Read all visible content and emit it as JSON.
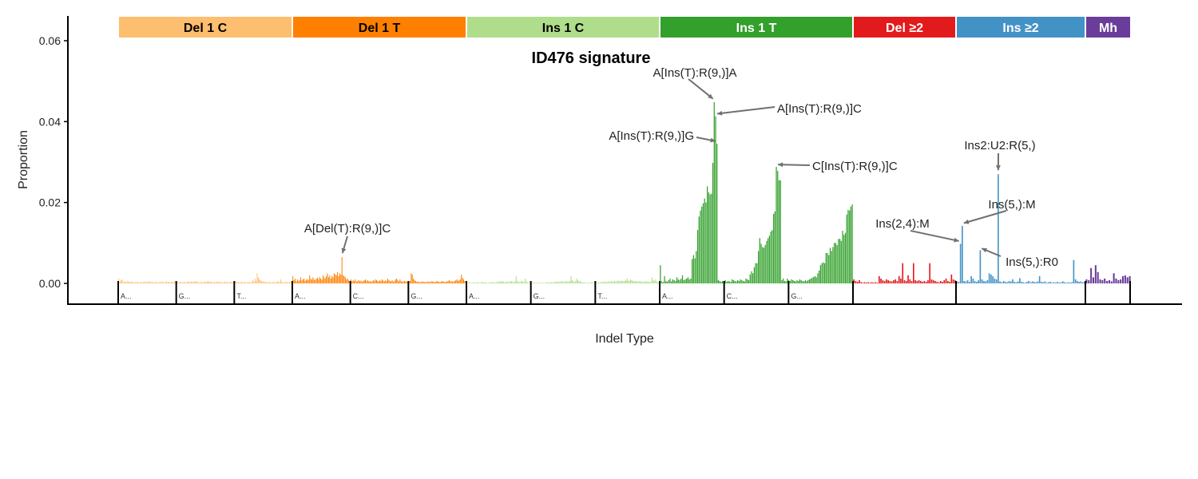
{
  "chart_data": {
    "type": "bar",
    "title": "ID476 signature",
    "xlabel": "Indel Type",
    "ylabel": "Proportion",
    "ylim": [
      0,
      0.065
    ],
    "yticks": [
      "0.00",
      "0.02",
      "0.04",
      "0.06"
    ],
    "ytick_values": [
      0,
      0.02,
      0.04,
      0.06
    ],
    "grid": false,
    "categories": [
      {
        "name": "Del 1 C",
        "color": "#fdbe6f",
        "text_color": "#000000",
        "groups": [
          "A...",
          "G...",
          "T..."
        ],
        "values": [
          0.0012,
          0.0004,
          0.0008,
          0.001,
          0.0003,
          0.0005,
          0.0004,
          0.0003,
          0.0006,
          0.0004,
          0.0003,
          0.0005,
          0.0003,
          0.0004,
          0.0002,
          0.0003,
          0.0004,
          0.0003,
          0.0002,
          0.0003,
          0.0004,
          0.0002,
          0.0003,
          0.0005,
          0.0002,
          0.0004,
          0.0003,
          0.0005,
          0.0004,
          0.0003,
          0.0004,
          0.0003,
          0.0002,
          0.0004,
          0.0003,
          0.0002,
          0.0003,
          0.0004,
          0.0002,
          0.0005,
          0.0003,
          0.0002,
          0.0004,
          0.0005,
          0.0003,
          0.0004,
          0.0002,
          0.0003,
          0.0004,
          0.0003,
          0.0005,
          0.0002,
          0.0004,
          0.0003,
          0.0002,
          0.0003,
          0.0004,
          0.0002,
          0.0003,
          0.0004,
          0.0002,
          0.0003,
          0.0005,
          0.0004,
          0.0003,
          0.0004,
          0.0005,
          0.0003,
          0.0004,
          0.0006,
          0.0003,
          0.0004,
          0.0002,
          0.0003,
          0.0004,
          0.0002,
          0.0003,
          0.0005,
          0.0003,
          0.0004,
          0.0006,
          0.0003,
          0.0005,
          0.0004,
          0.0002,
          0.0003,
          0.0004,
          0.0003,
          0.0004,
          0.0005,
          0.0003,
          0.0004,
          0.0003,
          0.0002,
          0.0003,
          0.0004,
          0.0003,
          0.0004,
          0.0002,
          0.0003,
          0.0004,
          0.0003,
          0.0002,
          0.0003,
          0.0004,
          0.0005,
          0.0003,
          0.0004,
          0.0002,
          0.0003,
          0.0004,
          0.0003,
          0.0002,
          0.0004,
          0.0003,
          0.0002,
          0.0003,
          0.0004,
          0.0002,
          0.0003,
          0.0008,
          0.0004,
          0.0012,
          0.0006,
          0.0025,
          0.0015,
          0.001,
          0.0008,
          0.0006,
          0.0004,
          0.0005,
          0.0003,
          0.0004,
          0.0003,
          0.0002,
          0.0004,
          0.0003,
          0.0002,
          0.0003,
          0.0004,
          0.0002,
          0.0003,
          0.0005,
          0.0004,
          0.0003,
          0.001,
          0.0004,
          0.0003,
          0.0002,
          0.0003,
          0.0004,
          0.0003,
          0.0002,
          0.0003,
          0.0004,
          0.0003
        ]
      },
      {
        "name": "Del 1 T",
        "color": "#ff8001",
        "text_color": "#000000",
        "groups": [
          "A...",
          "C...",
          "G..."
        ],
        "values": [
          0.0018,
          0.0008,
          0.0012,
          0.0005,
          0.001,
          0.0006,
          0.0008,
          0.0015,
          0.0007,
          0.001,
          0.0012,
          0.0006,
          0.0009,
          0.0011,
          0.0008,
          0.002,
          0.0012,
          0.0009,
          0.0015,
          0.001,
          0.0008,
          0.0012,
          0.0014,
          0.001,
          0.0016,
          0.0012,
          0.0009,
          0.002,
          0.0015,
          0.0012,
          0.0018,
          0.0025,
          0.0015,
          0.002,
          0.0012,
          0.0018,
          0.0015,
          0.0025,
          0.0022,
          0.002,
          0.0028,
          0.0018,
          0.0025,
          0.0022,
          0.0065,
          0.002,
          0.0018,
          0.0015,
          0.001,
          0.0012,
          0.0008,
          0.0006,
          0.001,
          0.0005,
          0.0008,
          0.0006,
          0.001,
          0.0004,
          0.0006,
          0.0008,
          0.0005,
          0.0007,
          0.0004,
          0.0006,
          0.0008,
          0.001,
          0.0006,
          0.0008,
          0.0005,
          0.0006,
          0.0004,
          0.0005,
          0.0008,
          0.0006,
          0.001,
          0.0008,
          0.0006,
          0.0005,
          0.0008,
          0.0006,
          0.001,
          0.0007,
          0.0005,
          0.0008,
          0.0006,
          0.0012,
          0.0008,
          0.0006,
          0.0005,
          0.0008,
          0.0004,
          0.0006,
          0.001,
          0.0012,
          0.0008,
          0.0005,
          0.001,
          0.0006,
          0.0004,
          0.0005,
          0.0006,
          0.0004,
          0.0005,
          0.0003,
          0.0004,
          0.0006,
          0.0025,
          0.0022,
          0.0012,
          0.0008,
          0.0006,
          0.0004,
          0.0005,
          0.0003,
          0.0004,
          0.0003,
          0.0005,
          0.0004,
          0.0003,
          0.0004,
          0.0003,
          0.0005,
          0.0004,
          0.0003,
          0.0006,
          0.0004,
          0.0005,
          0.0003,
          0.0004,
          0.0006,
          0.0005,
          0.0004,
          0.0003,
          0.0005,
          0.0006,
          0.0004,
          0.0003,
          0.0005,
          0.0004,
          0.0006,
          0.0008,
          0.0005,
          0.0006,
          0.0004,
          0.0005,
          0.0006,
          0.0008,
          0.001,
          0.0006,
          0.0008,
          0.001,
          0.0022,
          0.0014,
          0.001,
          0.0006,
          0.0004
        ]
      },
      {
        "name": "Ins 1 C",
        "color": "#b0dd8b",
        "text_color": "#000000",
        "groups": [
          "A...",
          "G...",
          "T..."
        ],
        "values": [
          0.0002,
          0.0001,
          0.0003,
          0.0002,
          0.0001,
          0.0002,
          0.0003,
          0.0001,
          0.0002,
          0.0003,
          0.0002,
          0.0001,
          0.0002,
          0.0004,
          0.0003,
          0.0002,
          0.0003,
          0.0002,
          0.0001,
          0.0002,
          0.0003,
          0.0002,
          0.0004,
          0.0002,
          0.0003,
          0.0002,
          0.0004,
          0.0003,
          0.0005,
          0.0004,
          0.0006,
          0.0004,
          0.0005,
          0.0003,
          0.0004,
          0.0005,
          0.0003,
          0.0004,
          0.0005,
          0.0006,
          0.0004,
          0.0003,
          0.0005,
          0.0018,
          0.0006,
          0.0004,
          0.0003,
          0.0005,
          0.0006,
          0.0004,
          0.0003,
          0.0012,
          0.0005,
          0.0003,
          0.0002,
          0.0003,
          0.0002,
          0.0001,
          0.0002,
          0.0002,
          0.0001,
          0.0002,
          0.0001,
          0.0002,
          0.0001,
          0.0002,
          0.0001,
          0.0002,
          0.0001,
          0.0002,
          0.0003,
          0.0002,
          0.0003,
          0.0002,
          0.0003,
          0.0002,
          0.0004,
          0.0003,
          0.0004,
          0.0005,
          0.0004,
          0.0003,
          0.0005,
          0.0006,
          0.0004,
          0.0003,
          0.0006,
          0.0005,
          0.0004,
          0.0005,
          0.0006,
          0.0018,
          0.0008,
          0.0005,
          0.0004,
          0.0006,
          0.0012,
          0.0008,
          0.0005,
          0.0006,
          0.0003,
          0.0002,
          0.0003,
          0.0002,
          0.0001,
          0.0002,
          0.0002,
          0.0001,
          0.0002,
          0.0003,
          0.0002,
          0.0001,
          0.0002,
          0.0003,
          0.0002,
          0.0003,
          0.0002,
          0.0003,
          0.0004,
          0.0003,
          0.0005,
          0.0004,
          0.0003,
          0.0004,
          0.0005,
          0.0003,
          0.0006,
          0.0004,
          0.0005,
          0.0006,
          0.0004,
          0.0005,
          0.0008,
          0.0005,
          0.0006,
          0.0007,
          0.0005,
          0.0006,
          0.0006,
          0.0008,
          0.0012,
          0.0007,
          0.0006,
          0.001,
          0.0008,
          0.0006,
          0.0005,
          0.0006,
          0.0005,
          0.0004,
          0.0005,
          0.0006,
          0.0004,
          0.0005,
          0.0003,
          0.0004,
          0.0006,
          0.0004,
          0.0005,
          0.0004,
          0.0003,
          0.0005,
          0.0015,
          0.0008,
          0.0006,
          0.001,
          0.0004,
          0.0003,
          0.0002
        ]
      },
      {
        "name": "Ins 1 T",
        "color": "#33a02c",
        "text_color": "#ffffff",
        "groups": [
          "A...",
          "C...",
          "G..."
        ],
        "values": [
          0.0045,
          0.0005,
          0.0003,
          0.0018,
          0.0006,
          0.0004,
          0.0008,
          0.0012,
          0.0005,
          0.001,
          0.0008,
          0.0006,
          0.0015,
          0.001,
          0.0008,
          0.0012,
          0.002,
          0.0008,
          0.001,
          0.0012,
          0.0015,
          0.001,
          0.0012,
          0.006,
          0.007,
          0.0062,
          0.008,
          0.0132,
          0.0165,
          0.018,
          0.019,
          0.0198,
          0.021,
          0.02,
          0.024,
          0.0225,
          0.022,
          0.0222,
          0.0298,
          0.0448,
          0.0413,
          0.0345,
          0.0008,
          0.0006,
          0.0004,
          0.0006,
          0.0005,
          0.0008,
          0.0004,
          0.0006,
          0.0005,
          0.0004,
          0.001,
          0.0008,
          0.0006,
          0.0005,
          0.0008,
          0.0006,
          0.001,
          0.0008,
          0.0006,
          0.0005,
          0.0012,
          0.001,
          0.0008,
          0.0022,
          0.003,
          0.0025,
          0.004,
          0.005,
          0.005,
          0.008,
          0.0112,
          0.0098,
          0.009,
          0.0088,
          0.0095,
          0.0105,
          0.0112,
          0.0118,
          0.0128,
          0.0132,
          0.0172,
          0.0178,
          0.0288,
          0.0278,
          0.0255,
          0.0255,
          0.0008,
          0.0012,
          0.0006,
          0.0005,
          0.0012,
          0.0008,
          0.0006,
          0.001,
          0.0008,
          0.0006,
          0.0005,
          0.0008,
          0.0006,
          0.001,
          0.0008,
          0.0006,
          0.0005,
          0.0008,
          0.0006,
          0.0008,
          0.001,
          0.0012,
          0.0014,
          0.0016,
          0.0018,
          0.0015,
          0.0025,
          0.0032,
          0.0045,
          0.005,
          0.0052,
          0.005,
          0.0075,
          0.0075,
          0.007,
          0.0088,
          0.008,
          0.009,
          0.01,
          0.01,
          0.0095,
          0.011,
          0.011,
          0.0105,
          0.013,
          0.012,
          0.0125,
          0.017,
          0.0182,
          0.018,
          0.019,
          0.0195
        ]
      },
      {
        "name": "Del ≥2",
        "color": "#e31a1c",
        "text_color": "#ffffff",
        "groups": [],
        "values": [
          0.001,
          0.0006,
          0.0004,
          0.0008,
          0.0003,
          0.0002,
          0.0003,
          0.0002,
          0.0003,
          0.0002,
          0.0003,
          0.0002,
          0.0003,
          0.0002,
          0.0018,
          0.0012,
          0.0008,
          0.0006,
          0.001,
          0.0008,
          0.0006,
          0.0005,
          0.0008,
          0.001,
          0.0006,
          0.0018,
          0.0012,
          0.005,
          0.0008,
          0.0006,
          0.002,
          0.001,
          0.0006,
          0.005,
          0.0008,
          0.0006,
          0.0008,
          0.0006,
          0.0004,
          0.0006,
          0.0004,
          0.0008,
          0.005,
          0.001,
          0.0008,
          0.0006,
          0.0004,
          0.0003,
          0.0006,
          0.0004,
          0.0008,
          0.0012,
          0.0006,
          0.0004,
          0.0022,
          0.001,
          0.0008
        ]
      },
      {
        "name": "Ins ≥2",
        "color": "#4392c6",
        "text_color": "#ffffff",
        "groups": [],
        "values": [
          0.0005,
          0.0004,
          0.0098,
          0.0142,
          0.0006,
          0.0005,
          0.0008,
          0.0004,
          0.0018,
          0.0012,
          0.0006,
          0.0004,
          0.0008,
          0.0082,
          0.001,
          0.0006,
          0.0005,
          0.0008,
          0.0025,
          0.0022,
          0.0018,
          0.0012,
          0.001,
          0.027,
          0.0005,
          0.0003,
          0.0006,
          0.0004,
          0.0003,
          0.0006,
          0.0005,
          0.001,
          0.0004,
          0.0003,
          0.0005,
          0.0013,
          0.0004,
          0.0003,
          0.0002,
          0.0004,
          0.0006,
          0.0003,
          0.0005,
          0.0004,
          0.0003,
          0.0005,
          0.0018,
          0.0004,
          0.0003,
          0.0005,
          0.0002,
          0.0003,
          0.0004,
          0.0002,
          0.0003,
          0.0002,
          0.0004,
          0.0002,
          0.0003,
          0.0005,
          0.0003,
          0.0002,
          0.0003,
          0.0002,
          0.0003,
          0.0058,
          0.001,
          0.0006,
          0.0004,
          0.0005,
          0.0003,
          0.0004
        ]
      },
      {
        "name": "Mh",
        "color": "#6a3d9a",
        "text_color": "#ffffff",
        "groups": [],
        "values": [
          0.001,
          0.0008,
          0.0038,
          0.0015,
          0.0045,
          0.0028,
          0.001,
          0.0008,
          0.0012,
          0.0006,
          0.0008,
          0.0005,
          0.0025,
          0.0012,
          0.0008,
          0.001,
          0.0018,
          0.002,
          0.0015,
          0.0018
        ]
      }
    ],
    "annotations": [
      {
        "label": "A[Del(T):R(9,)]C",
        "category": 1,
        "index": 44,
        "value": 0.0065
      },
      {
        "label": "A[Ins(T):R(9,)]A",
        "category": 3,
        "index": 39,
        "value": 0.0448
      },
      {
        "label": "A[Ins(T):R(9,)]C",
        "category": 3,
        "index": 40,
        "value": 0.0413
      },
      {
        "label": "A[Ins(T):R(9,)]G",
        "category": 3,
        "index": 41,
        "value": 0.0345
      },
      {
        "label": "C[Ins(T):R(9,)]C",
        "category": 3,
        "index": 84,
        "value": 0.0288
      },
      {
        "label": "Ins2:U2:R(5,)",
        "category": 5,
        "index": 23,
        "value": 0.027
      },
      {
        "label": "Ins(5,):M",
        "category": 5,
        "index": 3,
        "value": 0.0142
      },
      {
        "label": "Ins(2,4):M",
        "category": 5,
        "index": 2,
        "value": 0.0098
      },
      {
        "label": "Ins(5,):R0",
        "category": 5,
        "index": 13,
        "value": 0.0082
      }
    ]
  }
}
